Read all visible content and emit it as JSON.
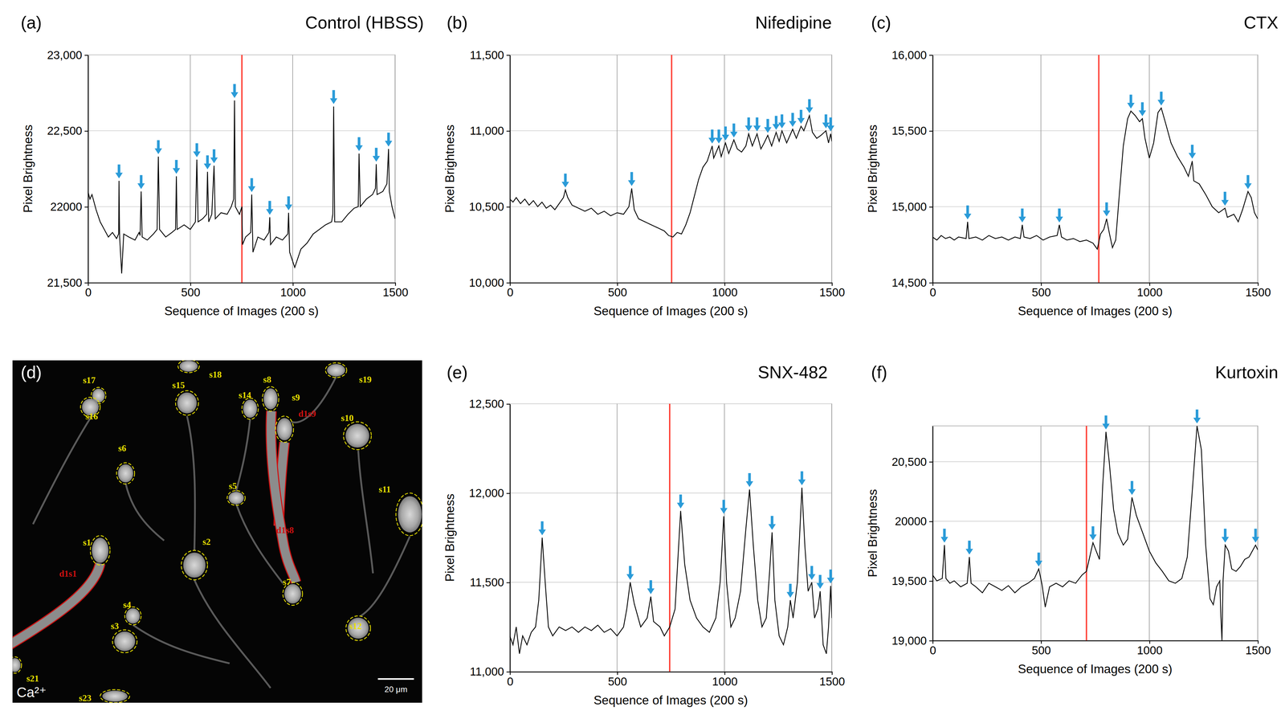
{
  "chart_data": [
    {
      "type": "line",
      "panel": "(a)",
      "title": "Control (HBSS)",
      "x_label": "Sequence of Images (200 s)",
      "y_label": "Pixel Brightness",
      "color": "#000000",
      "grid": true,
      "xlim": [
        0,
        1500
      ],
      "xticks": [
        0,
        500,
        1000,
        1500
      ],
      "ylim": [
        21500,
        23000
      ],
      "yticks": [
        {
          "value": 21500,
          "label": "21,500"
        },
        22000,
        {
          "value": 22500,
          "label": "22,500"
        },
        {
          "value": 23000,
          "label": "23,000"
        }
      ],
      "application_x": 752,
      "x": [
        0,
        10,
        20,
        40,
        60,
        80,
        100,
        120,
        140,
        150,
        152,
        155,
        165,
        175,
        200,
        230,
        250,
        255,
        260,
        265,
        290,
        320,
        338,
        344,
        350,
        380,
        410,
        428,
        432,
        436,
        470,
        500,
        525,
        532,
        538,
        560,
        580,
        584,
        590,
        605,
        616,
        622,
        650,
        680,
        700,
        712,
        716,
        720,
        740,
        752,
        755,
        770,
        795,
        800,
        806,
        830,
        860,
        884,
        888,
        892,
        920,
        950,
        976,
        980,
        985,
        1010,
        1040,
        1070,
        1100,
        1130,
        1160,
        1190,
        1196,
        1200,
        1205,
        1240,
        1270,
        1300,
        1320,
        1324,
        1330,
        1360,
        1390,
        1404,
        1408,
        1412,
        1440,
        1460,
        1468,
        1472,
        1485,
        1500
      ],
      "values": [
        22100,
        22050,
        22080,
        21980,
        21900,
        21850,
        21800,
        21830,
        21790,
        21820,
        22170,
        21800,
        21560,
        21820,
        21800,
        21780,
        21830,
        21810,
        22100,
        21800,
        21780,
        21820,
        21850,
        22330,
        21850,
        21800,
        21830,
        21850,
        22200,
        21850,
        21880,
        21850,
        21900,
        22310,
        21900,
        21920,
        21950,
        22230,
        21900,
        21950,
        22270,
        21920,
        21960,
        21950,
        22000,
        22050,
        22700,
        22000,
        21950,
        22000,
        21750,
        21800,
        21830,
        22080,
        21700,
        21800,
        21780,
        21830,
        21930,
        21750,
        21800,
        21780,
        21820,
        21960,
        21700,
        21600,
        21720,
        21760,
        21820,
        21850,
        21880,
        21900,
        21950,
        22660,
        21900,
        21900,
        21950,
        21990,
        22000,
        22350,
        22000,
        22050,
        22080,
        22120,
        22280,
        22080,
        22100,
        22150,
        22380,
        22100,
        22000,
        21920
      ],
      "arrows": {
        "x": [
          152,
          260,
          344,
          432,
          532,
          584,
          616,
          716,
          800,
          888,
          980,
          1200,
          1324,
          1408,
          1468
        ],
        "y": [
          22170,
          22100,
          22330,
          22200,
          22310,
          22230,
          22270,
          22700,
          22080,
          21930,
          21960,
          22660,
          22350,
          22280,
          22380
        ]
      }
    },
    {
      "type": "line",
      "panel": "(b)",
      "title": "Nifedipine",
      "x_label": "Sequence of Images (200 s)",
      "y_label": "Pixel Brightness",
      "color": "#000000",
      "grid": true,
      "xlim": [
        0,
        1500
      ],
      "xticks": [
        0,
        500,
        1000,
        1500
      ],
      "ylim": [
        10000,
        11500
      ],
      "yticks": [
        {
          "value": 10000,
          "label": "10,000"
        },
        {
          "value": 10500,
          "label": "10,500"
        },
        {
          "value": 11000,
          "label": "11,000"
        },
        {
          "value": 11500,
          "label": "11,500"
        }
      ],
      "application_x": 754,
      "x": [
        0,
        15,
        30,
        50,
        70,
        90,
        110,
        130,
        150,
        170,
        190,
        210,
        230,
        250,
        259,
        270,
        290,
        320,
        350,
        380,
        410,
        440,
        470,
        500,
        530,
        555,
        568,
        580,
        600,
        630,
        660,
        690,
        720,
        740,
        760,
        780,
        800,
        820,
        840,
        860,
        880,
        900,
        920,
        943,
        950,
        974,
        985,
        1005,
        1020,
        1044,
        1060,
        1080,
        1100,
        1113,
        1130,
        1152,
        1170,
        1185,
        1202,
        1220,
        1241,
        1255,
        1268,
        1290,
        1318,
        1335,
        1357,
        1370,
        1396,
        1410,
        1430,
        1450,
        1473,
        1485,
        1495,
        1500
      ],
      "values": [
        10550,
        10530,
        10560,
        10520,
        10550,
        10510,
        10540,
        10500,
        10530,
        10490,
        10510,
        10480,
        10520,
        10560,
        10610,
        10560,
        10510,
        10490,
        10470,
        10490,
        10450,
        10470,
        10440,
        10460,
        10450,
        10500,
        10620,
        10480,
        10420,
        10400,
        10380,
        10360,
        10340,
        10310,
        10300,
        10330,
        10320,
        10380,
        10460,
        10570,
        10680,
        10760,
        10800,
        10900,
        10820,
        10900,
        10830,
        10920,
        10850,
        10940,
        10880,
        10860,
        10900,
        10980,
        10900,
        10980,
        10880,
        10920,
        10970,
        10900,
        10990,
        10930,
        11000,
        10920,
        11010,
        10950,
        11030,
        11000,
        11100,
        10990,
        10950,
        10970,
        11000,
        10920,
        10980,
        10930
      ],
      "arrows": {
        "x": [
          259,
          568,
          943,
          974,
          1005,
          1044,
          1113,
          1152,
          1202,
          1241,
          1268,
          1318,
          1357,
          1396,
          1473,
          1495
        ],
        "y": [
          10610,
          10620,
          10900,
          10900,
          10920,
          10940,
          10980,
          10980,
          10970,
          10990,
          11000,
          11010,
          11030,
          11100,
          11000,
          10980
        ]
      }
    },
    {
      "type": "line",
      "panel": "(c)",
      "title": "CTX",
      "x_label": "Sequence of Images (200 s)",
      "y_label": "Pixel Brightness",
      "color": "#000000",
      "grid": true,
      "xlim": [
        0,
        1500
      ],
      "xticks": [
        0,
        500,
        1000,
        1500
      ],
      "ylim": [
        14500,
        16000
      ],
      "yticks": [
        {
          "value": 14500,
          "label": "14,500"
        },
        {
          "value": 15000,
          "label": "15,000"
        },
        {
          "value": 15500,
          "label": "15,500"
        },
        {
          "value": 16000,
          "label": "16,000"
        }
      ],
      "application_x": 767,
      "x": [
        0,
        20,
        40,
        60,
        80,
        100,
        120,
        155,
        162,
        168,
        200,
        230,
        260,
        290,
        320,
        350,
        380,
        405,
        414,
        422,
        450,
        480,
        510,
        540,
        575,
        585,
        595,
        620,
        650,
        680,
        710,
        740,
        760,
        775,
        790,
        803,
        815,
        830,
        845,
        860,
        880,
        900,
        915,
        935,
        955,
        968,
        980,
        1000,
        1020,
        1040,
        1055,
        1075,
        1100,
        1130,
        1160,
        1180,
        1198,
        1205,
        1230,
        1260,
        1290,
        1320,
        1349,
        1360,
        1390,
        1410,
        1430,
        1455,
        1470,
        1485,
        1500
      ],
      "values": [
        14800,
        14780,
        14810,
        14790,
        14800,
        14780,
        14800,
        14790,
        14900,
        14790,
        14800,
        14780,
        14810,
        14790,
        14800,
        14780,
        14800,
        14790,
        14880,
        14800,
        14790,
        14810,
        14780,
        14800,
        14810,
        14880,
        14800,
        14780,
        14790,
        14770,
        14780,
        14760,
        14720,
        14820,
        14850,
        14920,
        14830,
        14730,
        14780,
        15050,
        15400,
        15580,
        15630,
        15600,
        15560,
        15580,
        15450,
        15320,
        15420,
        15620,
        15650,
        15550,
        15420,
        15330,
        15260,
        15200,
        15300,
        15170,
        15150,
        15080,
        15000,
        14960,
        14990,
        14930,
        14950,
        14900,
        14980,
        15100,
        15060,
        14960,
        14920
      ],
      "arrows": {
        "x": [
          162,
          414,
          585,
          803,
          915,
          968,
          1055,
          1198,
          1349,
          1455
        ],
        "y": [
          14900,
          14880,
          14880,
          14920,
          15630,
          15580,
          15650,
          15300,
          14990,
          15100
        ]
      }
    },
    {
      "type": "line",
      "panel": "(e)",
      "title": "SNX-482",
      "x_label": "Sequence of Images (200 s)",
      "y_label": "Pixel Brightness",
      "color": "#000000",
      "grid": true,
      "xlim": [
        0,
        1500
      ],
      "xticks": [
        0,
        500,
        1000,
        1500
      ],
      "ylim": [
        11000,
        12500
      ],
      "yticks": [
        {
          "value": 11000,
          "label": "11,000"
        },
        {
          "value": 11500,
          "label": "11,500"
        },
        {
          "value": 12000,
          "label": "12,000"
        },
        {
          "value": 12500,
          "label": "12,500"
        }
      ],
      "application_x": 745,
      "x": [
        0,
        15,
        30,
        45,
        60,
        80,
        100,
        120,
        135,
        151,
        165,
        180,
        200,
        230,
        260,
        290,
        320,
        350,
        380,
        410,
        440,
        470,
        500,
        530,
        545,
        561,
        580,
        610,
        640,
        657,
        670,
        700,
        720,
        745,
        770,
        796,
        815,
        840,
        870,
        900,
        930,
        960,
        980,
        997,
        1010,
        1030,
        1050,
        1075,
        1100,
        1117,
        1135,
        1155,
        1175,
        1195,
        1210,
        1222,
        1235,
        1255,
        1275,
        1295,
        1307,
        1320,
        1340,
        1361,
        1375,
        1390,
        1407,
        1420,
        1435,
        1446,
        1460,
        1475,
        1485,
        1495,
        1500
      ],
      "values": [
        11200,
        11150,
        11250,
        11100,
        11200,
        11150,
        11220,
        11250,
        11400,
        11750,
        11500,
        11250,
        11200,
        11250,
        11230,
        11250,
        11220,
        11250,
        11230,
        11260,
        11220,
        11240,
        11200,
        11250,
        11350,
        11500,
        11380,
        11250,
        11300,
        11420,
        11280,
        11250,
        11200,
        11250,
        11350,
        11900,
        11600,
        11400,
        11300,
        11250,
        11220,
        11300,
        11500,
        11870,
        11500,
        11250,
        11300,
        11450,
        11800,
        12020,
        11700,
        11400,
        11250,
        11300,
        11550,
        11780,
        11400,
        11200,
        11150,
        11250,
        11400,
        11300,
        11500,
        12030,
        11700,
        11450,
        11500,
        11300,
        11350,
        11450,
        11150,
        11100,
        11250,
        11480,
        11300
      ],
      "arrows": {
        "x": [
          151,
          561,
          657,
          796,
          997,
          1117,
          1222,
          1307,
          1361,
          1407,
          1446,
          1495
        ],
        "y": [
          11750,
          11500,
          11420,
          11900,
          11870,
          12020,
          11780,
          11400,
          12030,
          11500,
          11450,
          11480
        ]
      }
    },
    {
      "type": "line",
      "panel": "(f)",
      "title": "Kurtoxin",
      "x_label": "Sequence of Images (200 s)",
      "y_label": "Pixel Brightness",
      "color": "#000000",
      "grid": true,
      "xlim": [
        0,
        1500
      ],
      "xticks": [
        0,
        500,
        1000,
        1500
      ],
      "ylim": [
        19000,
        20800
      ],
      "yticks": [
        {
          "value": 19000,
          "label": "19,000"
        },
        {
          "value": 19500,
          "label": "19,500"
        },
        20000,
        {
          "value": 20500,
          "label": "20,500"
        }
      ],
      "application_x": 710,
      "x": [
        0,
        20,
        45,
        55,
        62,
        80,
        100,
        130,
        160,
        170,
        178,
        200,
        230,
        260,
        290,
        320,
        350,
        380,
        410,
        440,
        470,
        490,
        505,
        520,
        540,
        570,
        600,
        630,
        660,
        690,
        710,
        725,
        740,
        755,
        770,
        785,
        800,
        815,
        835,
        855,
        880,
        900,
        920,
        940,
        970,
        1000,
        1030,
        1060,
        1090,
        1120,
        1150,
        1175,
        1200,
        1220,
        1240,
        1260,
        1280,
        1295,
        1310,
        1325,
        1330,
        1335,
        1340,
        1350,
        1365,
        1380,
        1400,
        1420,
        1440,
        1460,
        1475,
        1490,
        1500
      ],
      "values": [
        19550,
        19500,
        19520,
        19800,
        19520,
        19480,
        19500,
        19450,
        19480,
        19700,
        19480,
        19450,
        19400,
        19480,
        19450,
        19420,
        19460,
        19400,
        19450,
        19480,
        19520,
        19600,
        19470,
        19280,
        19450,
        19480,
        19450,
        19500,
        19480,
        19550,
        19580,
        19700,
        19820,
        19750,
        19680,
        20300,
        20750,
        20500,
        20100,
        19900,
        19800,
        19850,
        20200,
        20050,
        19900,
        19750,
        19650,
        19580,
        19500,
        19480,
        19520,
        19700,
        20300,
        20800,
        20600,
        19800,
        19350,
        19300,
        19450,
        19500,
        19200,
        19000,
        19500,
        19800,
        19750,
        19600,
        19580,
        19620,
        19680,
        19700,
        19750,
        19800,
        19760
      ],
      "arrows": {
        "x": [
          55,
          170,
          490,
          740,
          800,
          920,
          1220,
          1350,
          1490
        ],
        "y": [
          19800,
          19700,
          19600,
          19820,
          20750,
          20200,
          20800,
          19800,
          19800
        ]
      }
    }
  ],
  "image": {
    "panel": "(d)",
    "channel": "Ca²⁺",
    "scale_bar": "20 μm",
    "cell_labels": [
      "s17",
      "s16",
      "s15",
      "s18",
      "s19",
      "s8",
      "s14",
      "s9",
      "s10",
      "s6",
      "s5",
      "s11",
      "s1",
      "s2",
      "s7",
      "s4",
      "s3",
      "s12",
      "s21",
      "s23"
    ],
    "dendrite_labels": [
      "d1s1",
      "d1s9",
      "d1s8"
    ]
  }
}
